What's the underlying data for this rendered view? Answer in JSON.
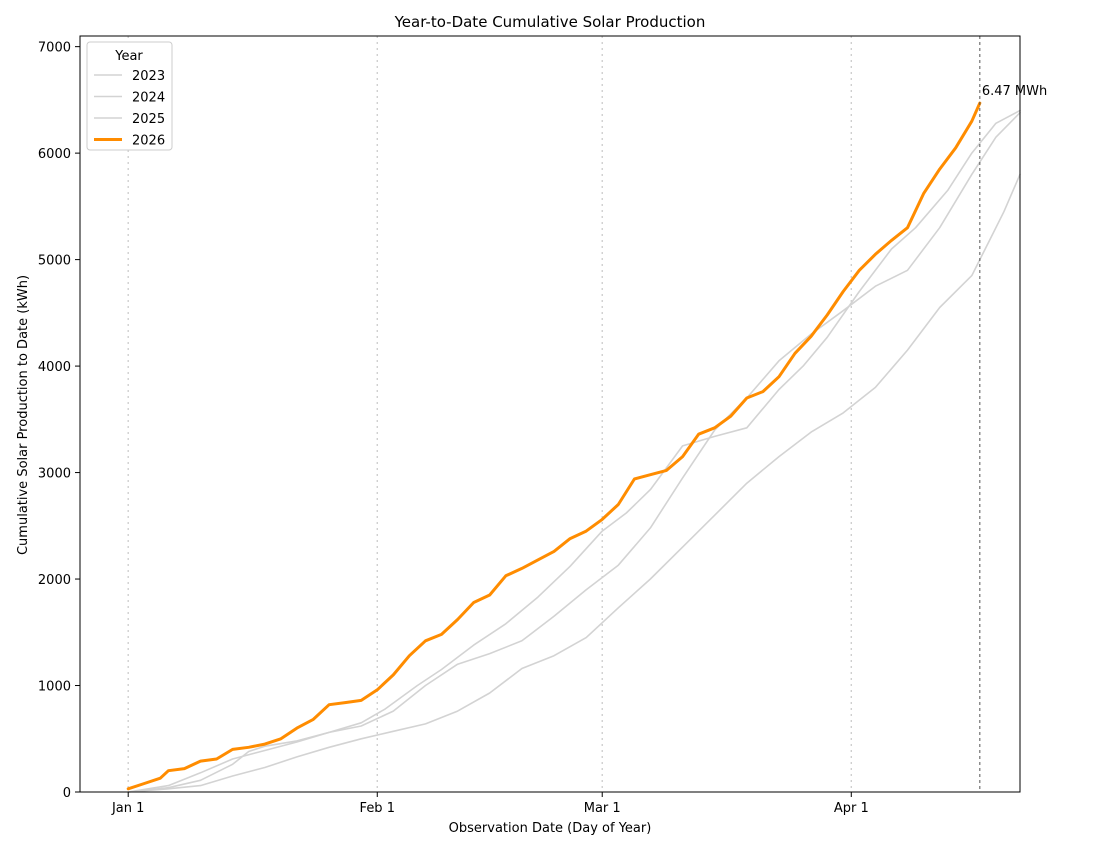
{
  "chart_data": {
    "type": "line",
    "title": "Year-to-Date Cumulative Solar Production",
    "xlabel": "Observation Date (Day of Year)",
    "ylabel": "Cumulative Solar Production to Date (kWh)",
    "x_ticks": [
      {
        "label": "Jan 1",
        "day": 1
      },
      {
        "label": "Feb 1",
        "day": 32
      },
      {
        "label": "Mar 1",
        "day": 60
      },
      {
        "label": "Apr 1",
        "day": 91
      }
    ],
    "xlim_days": [
      -5,
      112
    ],
    "ylim": [
      0,
      7100
    ],
    "y_ticks": [
      0,
      1000,
      2000,
      3000,
      4000,
      5000,
      6000,
      7000
    ],
    "grid": "x-dotted",
    "legend": {
      "title": "Year",
      "position": "top-left"
    },
    "current_day": 107,
    "annotation": {
      "text": "6.47 MWh",
      "day": 107,
      "value": 6470
    },
    "colors": {
      "past": "#d3d3d3",
      "current": "#ff8c00"
    },
    "series": [
      {
        "name": "2023",
        "highlight": false,
        "points": [
          [
            1,
            0
          ],
          [
            6,
            30
          ],
          [
            10,
            60
          ],
          [
            14,
            150
          ],
          [
            18,
            230
          ],
          [
            22,
            330
          ],
          [
            26,
            420
          ],
          [
            30,
            500
          ],
          [
            34,
            570
          ],
          [
            38,
            640
          ],
          [
            42,
            760
          ],
          [
            46,
            930
          ],
          [
            50,
            1160
          ],
          [
            54,
            1280
          ],
          [
            58,
            1450
          ],
          [
            62,
            1730
          ],
          [
            66,
            2000
          ],
          [
            70,
            2300
          ],
          [
            74,
            2600
          ],
          [
            78,
            2900
          ],
          [
            82,
            3150
          ],
          [
            86,
            3380
          ],
          [
            90,
            3560
          ],
          [
            94,
            3800
          ],
          [
            98,
            4150
          ],
          [
            102,
            4550
          ],
          [
            106,
            4850
          ],
          [
            108,
            5150
          ],
          [
            110,
            5450
          ],
          [
            112,
            5800
          ]
        ]
      },
      {
        "name": "2024",
        "highlight": false,
        "points": [
          [
            1,
            0
          ],
          [
            6,
            40
          ],
          [
            10,
            110
          ],
          [
            14,
            260
          ],
          [
            16,
            380
          ],
          [
            18,
            430
          ],
          [
            22,
            480
          ],
          [
            26,
            560
          ],
          [
            30,
            650
          ],
          [
            33,
            780
          ],
          [
            37,
            1000
          ],
          [
            40,
            1150
          ],
          [
            44,
            1380
          ],
          [
            48,
            1580
          ],
          [
            52,
            1830
          ],
          [
            56,
            2120
          ],
          [
            60,
            2450
          ],
          [
            63,
            2620
          ],
          [
            66,
            2840
          ],
          [
            70,
            3250
          ],
          [
            74,
            3340
          ],
          [
            78,
            3420
          ],
          [
            82,
            3780
          ],
          [
            85,
            4000
          ],
          [
            88,
            4270
          ],
          [
            92,
            4700
          ],
          [
            96,
            5100
          ],
          [
            99,
            5300
          ],
          [
            103,
            5650
          ],
          [
            106,
            6000
          ],
          [
            109,
            6280
          ],
          [
            112,
            6400
          ]
        ]
      },
      {
        "name": "2025",
        "highlight": false,
        "points": [
          [
            1,
            0
          ],
          [
            6,
            60
          ],
          [
            10,
            180
          ],
          [
            14,
            310
          ],
          [
            18,
            390
          ],
          [
            22,
            470
          ],
          [
            26,
            560
          ],
          [
            30,
            620
          ],
          [
            34,
            760
          ],
          [
            38,
            1000
          ],
          [
            42,
            1200
          ],
          [
            46,
            1300
          ],
          [
            50,
            1420
          ],
          [
            54,
            1650
          ],
          [
            58,
            1900
          ],
          [
            62,
            2130
          ],
          [
            66,
            2480
          ],
          [
            70,
            2950
          ],
          [
            74,
            3400
          ],
          [
            78,
            3700
          ],
          [
            82,
            4050
          ],
          [
            86,
            4300
          ],
          [
            90,
            4520
          ],
          [
            94,
            4750
          ],
          [
            98,
            4900
          ],
          [
            102,
            5300
          ],
          [
            106,
            5800
          ],
          [
            109,
            6150
          ],
          [
            112,
            6380
          ]
        ]
      },
      {
        "name": "2026",
        "highlight": true,
        "points": [
          [
            1,
            30
          ],
          [
            3,
            80
          ],
          [
            5,
            130
          ],
          [
            6,
            200
          ],
          [
            8,
            220
          ],
          [
            10,
            290
          ],
          [
            12,
            310
          ],
          [
            14,
            400
          ],
          [
            16,
            420
          ],
          [
            18,
            450
          ],
          [
            20,
            500
          ],
          [
            22,
            600
          ],
          [
            24,
            680
          ],
          [
            26,
            820
          ],
          [
            28,
            840
          ],
          [
            30,
            860
          ],
          [
            32,
            960
          ],
          [
            34,
            1100
          ],
          [
            36,
            1280
          ],
          [
            38,
            1420
          ],
          [
            40,
            1480
          ],
          [
            42,
            1620
          ],
          [
            44,
            1780
          ],
          [
            46,
            1850
          ],
          [
            48,
            2030
          ],
          [
            50,
            2100
          ],
          [
            52,
            2180
          ],
          [
            54,
            2260
          ],
          [
            56,
            2380
          ],
          [
            58,
            2450
          ],
          [
            60,
            2560
          ],
          [
            62,
            2700
          ],
          [
            64,
            2940
          ],
          [
            66,
            2980
          ],
          [
            68,
            3020
          ],
          [
            70,
            3150
          ],
          [
            72,
            3360
          ],
          [
            74,
            3420
          ],
          [
            76,
            3530
          ],
          [
            78,
            3700
          ],
          [
            80,
            3760
          ],
          [
            82,
            3900
          ],
          [
            84,
            4120
          ],
          [
            86,
            4280
          ],
          [
            88,
            4480
          ],
          [
            90,
            4700
          ],
          [
            92,
            4900
          ],
          [
            94,
            5050
          ],
          [
            96,
            5180
          ],
          [
            98,
            5300
          ],
          [
            100,
            5620
          ],
          [
            102,
            5850
          ],
          [
            104,
            6050
          ],
          [
            106,
            6300
          ],
          [
            107,
            6470
          ]
        ]
      }
    ]
  }
}
